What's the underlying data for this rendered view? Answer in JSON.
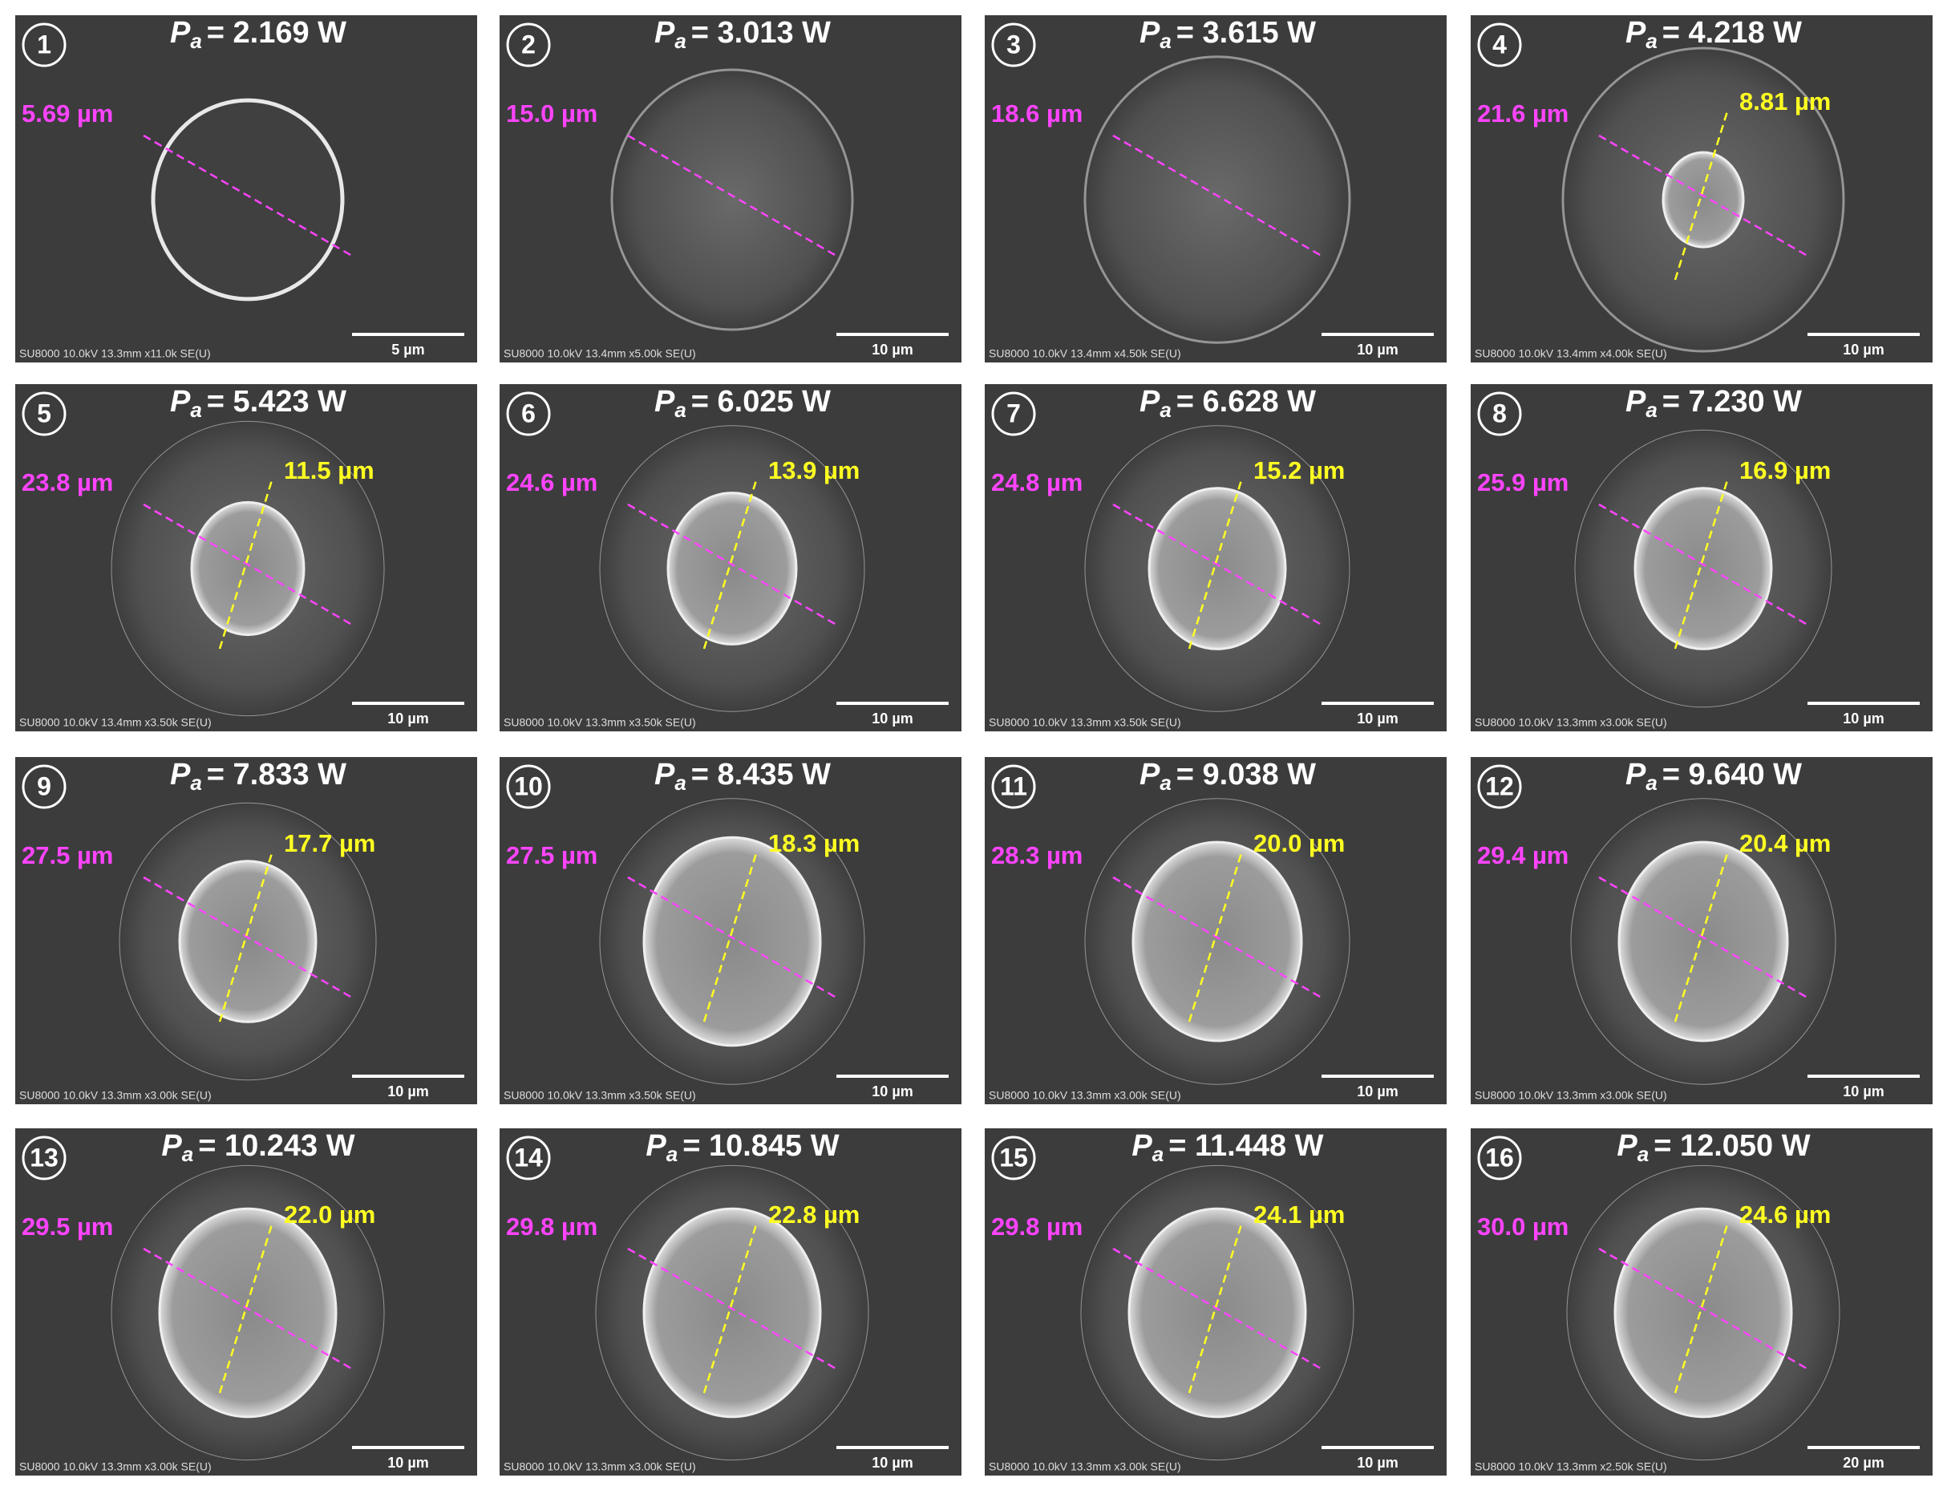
{
  "power_symbol": "P",
  "power_subscript": "a",
  "panels": [
    {
      "number": "1",
      "power": "= 2.169 W",
      "outer": "5.69 µm",
      "scale": "5 µm",
      "footer": "SU8000 10.0kV 13.3mm x11.0k SE(U)"
    },
    {
      "number": "2",
      "power": "= 3.013 W",
      "outer": "15.0 µm",
      "scale": "10 µm",
      "footer": "SU8000 10.0kV 13.4mm x5.00k SE(U)"
    },
    {
      "number": "3",
      "power": "= 3.615 W",
      "outer": "18.6 µm",
      "scale": "10 µm",
      "footer": "SU8000 10.0kV 13.4mm x4.50k SE(U)"
    },
    {
      "number": "4",
      "power": "= 4.218 W",
      "outer": "21.6 µm",
      "inner": "8.81 µm",
      "scale": "10 µm",
      "footer": "SU8000 10.0kV 13.4mm x4.00k SE(U)"
    },
    {
      "number": "5",
      "power": "= 5.423 W",
      "outer": "23.8 µm",
      "inner": "11.5 µm",
      "scale": "10 µm",
      "footer": "SU8000 10.0kV 13.4mm x3.50k SE(U)"
    },
    {
      "number": "6",
      "power": "= 6.025 W",
      "outer": "24.6 µm",
      "inner": "13.9 µm",
      "scale": "10 µm",
      "footer": "SU8000 10.0kV 13.3mm x3.50k SE(U)"
    },
    {
      "number": "7",
      "power": "= 6.628 W",
      "outer": "24.8 µm",
      "inner": "15.2 µm",
      "scale": "10 µm",
      "footer": "SU8000 10.0kV 13.3mm x3.50k SE(U)"
    },
    {
      "number": "8",
      "power": "= 7.230 W",
      "outer": "25.9 µm",
      "inner": "16.9 µm",
      "scale": "10 µm",
      "footer": "SU8000 10.0kV 13.3mm x3.00k SE(U)"
    },
    {
      "number": "9",
      "power": "= 7.833 W",
      "outer": "27.5 µm",
      "inner": "17.7 µm",
      "scale": "10 µm",
      "footer": "SU8000 10.0kV 13.3mm x3.00k SE(U)"
    },
    {
      "number": "10",
      "power": "= 8.435 W",
      "outer": "27.5 µm",
      "inner": "18.3 µm",
      "scale": "10 µm",
      "footer": "SU8000 10.0kV 13.3mm x3.50k SE(U)"
    },
    {
      "number": "11",
      "power": "= 9.038 W",
      "outer": "28.3 µm",
      "inner": "20.0 µm",
      "scale": "10 µm",
      "footer": "SU8000 10.0kV 13.3mm x3.00k SE(U)"
    },
    {
      "number": "12",
      "power": "= 9.640 W",
      "outer": "29.4 µm",
      "inner": "20.4 µm",
      "scale": "10 µm",
      "footer": "SU8000 10.0kV 13.3mm x3.00k SE(U)"
    },
    {
      "number": "13",
      "power": "= 10.243 W",
      "outer": "29.5 µm",
      "inner": "22.0 µm",
      "scale": "10 µm",
      "footer": "SU8000 10.0kV 13.3mm x3.00k SE(U)"
    },
    {
      "number": "14",
      "power": "= 10.845 W",
      "outer": "29.8 µm",
      "inner": "22.8 µm",
      "scale": "10 µm",
      "footer": "SU8000 10.0kV 13.3mm x3.00k SE(U)"
    },
    {
      "number": "15",
      "power": "= 11.448 W",
      "outer": "29.8 µm",
      "inner": "24.1 µm",
      "scale": "10 µm",
      "footer": "SU8000 10.0kV 13.3mm x3.00k SE(U)"
    },
    {
      "number": "16",
      "power": "= 12.050 W",
      "outer": "30.0 µm",
      "inner": "24.6 µm",
      "scale": "20 µm",
      "footer": "SU8000 10.0kV 13.3mm x2.50k SE(U)"
    }
  ]
}
